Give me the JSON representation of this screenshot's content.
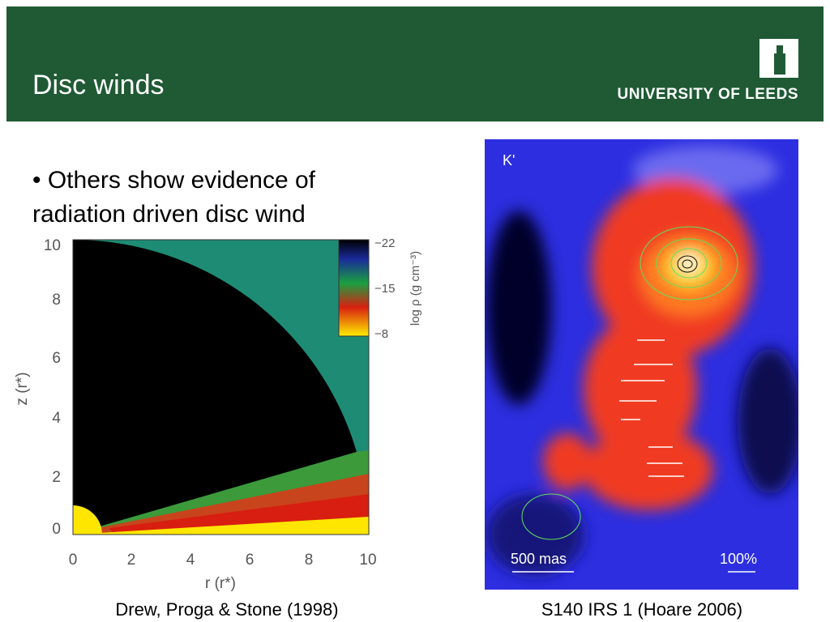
{
  "header": {
    "title": "Disc winds",
    "logo": "UNIVERSITY OF LEEDS"
  },
  "bullet": {
    "lines": [
      "• Others show evidence of",
      "radiation driven disc wind"
    ]
  },
  "left_figure": {
    "y_tick_labels": [
      "10",
      "8",
      "6",
      "4",
      "2",
      "0"
    ],
    "x_tick_labels": [
      "0",
      "2",
      "4",
      "6",
      "8",
      "10"
    ],
    "y_axis_label": "z (r*)",
    "x_axis_label": "r (r*)",
    "colorbar_labels": [
      "−22",
      "−15",
      "−8"
    ],
    "colorbar_title": "log ρ (g cm⁻³)",
    "caption": "Drew, Proga & Stone (1998)"
  },
  "right_figure": {
    "band": "K'",
    "scale_label": "500 mas",
    "contour_label": "100%",
    "caption": "S140 IRS 1 (Hoare 2006)"
  }
}
